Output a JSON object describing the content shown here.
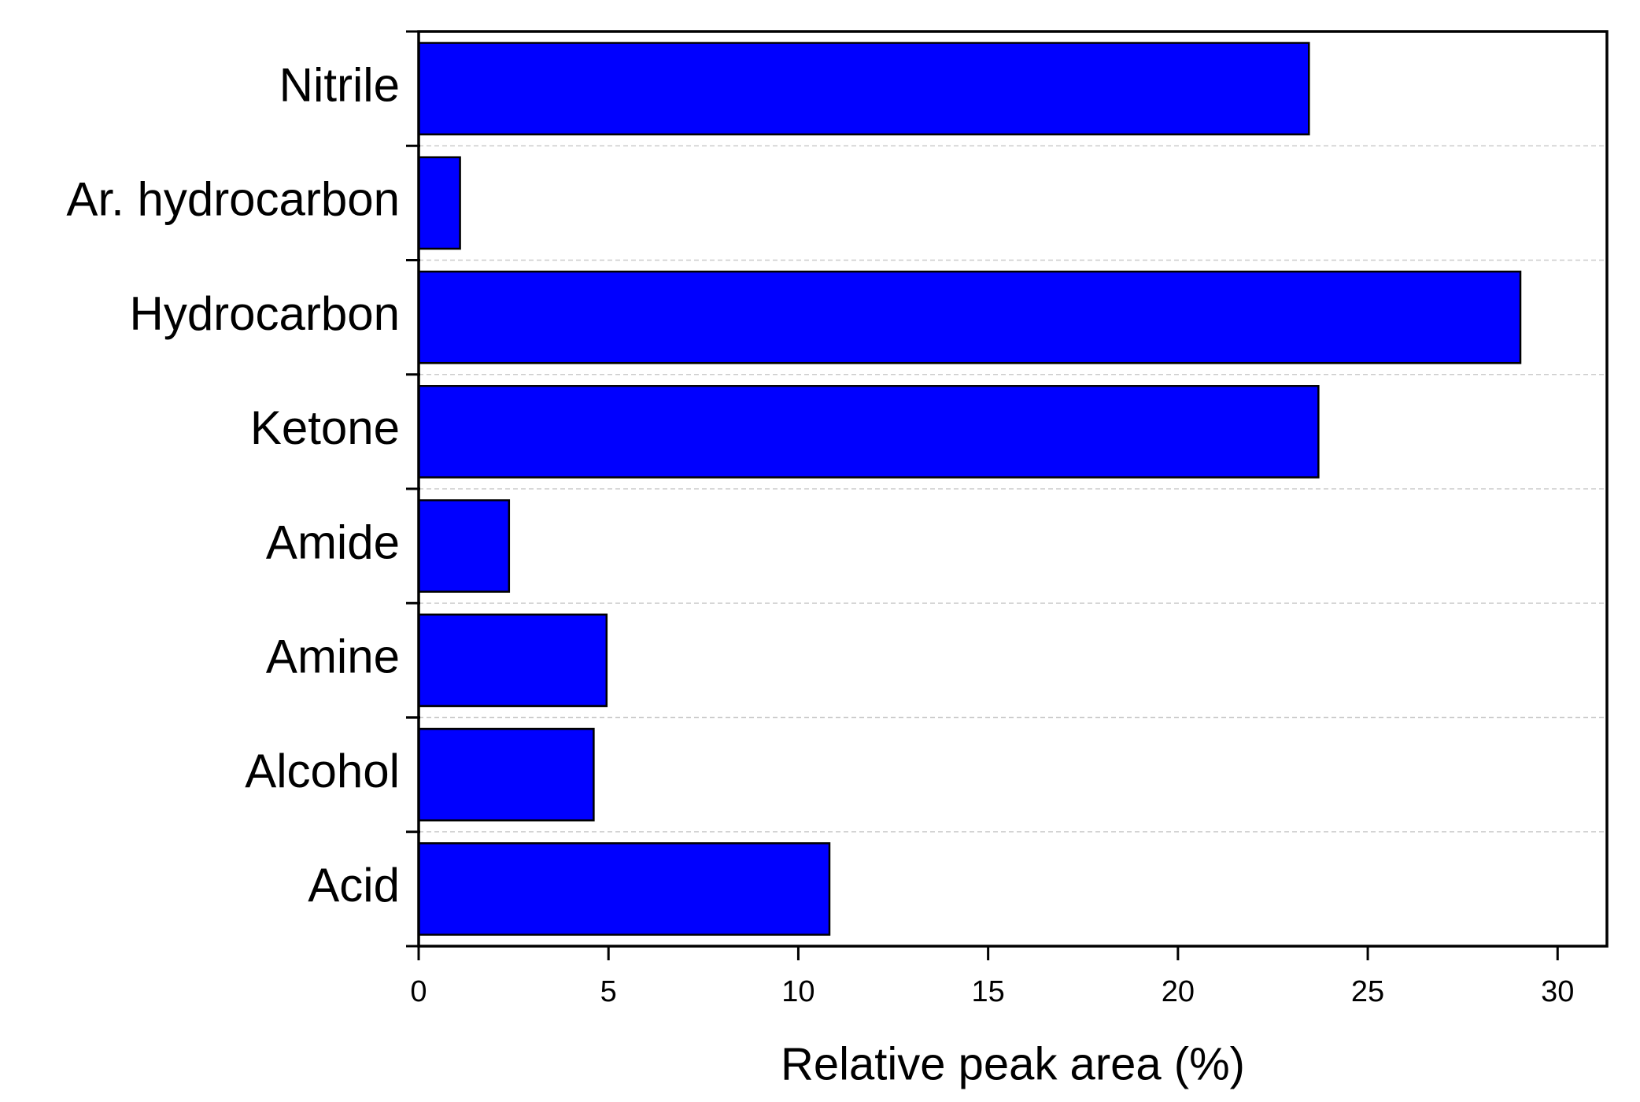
{
  "chart_data": {
    "type": "bar",
    "orientation": "horizontal",
    "x_label": "Relative peak area (%)",
    "categories": [
      "Nitrile",
      "Ar. hydrocarbon",
      "Hydrocarbon",
      "Ketone",
      "Amide",
      "Amine",
      "Alcohol",
      "Acid"
    ],
    "values": [
      23.45,
      1.09,
      29.02,
      23.7,
      2.38,
      4.95,
      4.61,
      10.82
    ],
    "color": "#0000ff",
    "xlim": [
      0,
      31.3
    ],
    "xticks": [
      0,
      5,
      10,
      15,
      20,
      25,
      30
    ],
    "grid": true
  }
}
